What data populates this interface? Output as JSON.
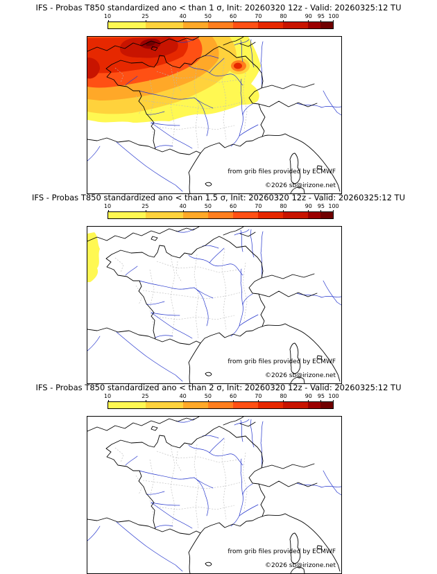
{
  "product": {
    "model": "IFS",
    "field": "Probas T850 standardized ano",
    "init": "20260320 12z",
    "valid": "20260325:12 TU"
  },
  "colorbar": {
    "min": 10,
    "max": 100,
    "ticks": [
      10,
      25,
      40,
      50,
      60,
      70,
      80,
      90,
      95,
      100
    ],
    "segments": [
      {
        "value_from": 10,
        "value_to": 25,
        "color": "#FFF852"
      },
      {
        "value_from": 25,
        "value_to": 40,
        "color": "#FFD23C"
      },
      {
        "value_from": 40,
        "value_to": 50,
        "color": "#FFA828"
      },
      {
        "value_from": 50,
        "value_to": 60,
        "color": "#FF7E1E"
      },
      {
        "value_from": 60,
        "value_to": 70,
        "color": "#FF5014"
      },
      {
        "value_from": 70,
        "value_to": 80,
        "color": "#E62800"
      },
      {
        "value_from": 80,
        "value_to": 90,
        "color": "#C81400"
      },
      {
        "value_from": 90,
        "value_to": 95,
        "color": "#9B0000"
      },
      {
        "value_from": 95,
        "value_to": 100,
        "color": "#700000"
      }
    ]
  },
  "panels": [
    {
      "sigma": "1 σ",
      "title": "IFS - Probas T850  standardized ano < than 1 σ, Init: 20260320 12z - Valid: 20260325:12 TU",
      "credit": "from grib files provided by ECMWF",
      "copyright": "©2026 sb@irizone.net"
    },
    {
      "sigma": "1.5 σ",
      "title": "IFS - Probas T850  standardized ano < than 1.5 σ, Init: 20260320 12z - Valid: 20260325:12 TU",
      "credit": "from grib files provided by ECMWF",
      "copyright": "©2026 sb@irizone.net"
    },
    {
      "sigma": "2 σ",
      "title": "IFS - Probas T850  standardized ano < than 2 σ, Init: 20260320 12z - Valid: 20260325:12 TU",
      "credit": "from grib files provided by ECMWF",
      "copyright": "©2026 sb@irizone.net"
    }
  ],
  "chart_data": {
    "type": "map-contour",
    "variable": "Probability that T850 standardized anomaly is less than threshold",
    "init": "20260320 12z",
    "valid": "20260325:12 TU",
    "colorbar_ticks": [
      10,
      25,
      40,
      50,
      60,
      70,
      80,
      90,
      95,
      100
    ],
    "panels": [
      {
        "threshold": "< 1 σ",
        "max_probability_shown": 100,
        "filled_region": "large maximum over Brittany, English Channel and northwest France, decreasing east/south; secondary orange-red cell near Belgian border"
      },
      {
        "threshold": "< 1.5 σ",
        "max_probability_shown": 25,
        "filled_region": "small yellow patch over the Atlantic at the west map edge"
      },
      {
        "threshold": "< 2 σ",
        "max_probability_shown": 0,
        "filled_region": "none"
      }
    ]
  }
}
